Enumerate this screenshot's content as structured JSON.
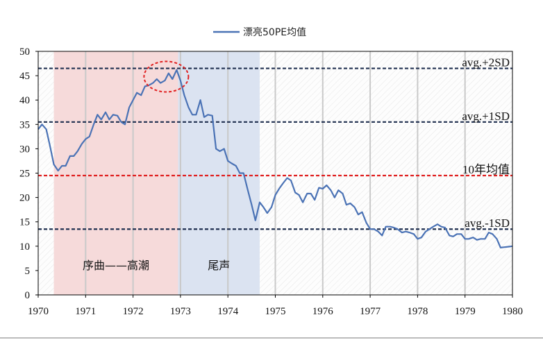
{
  "chart_data": {
    "type": "line",
    "title": "",
    "legend": {
      "position": "top-center",
      "entries": [
        "漂亮50PE均值"
      ]
    },
    "series": [
      {
        "name": "漂亮50PE均值",
        "color": "#4a72b5",
        "x": [
          1970.0,
          1970.08,
          1970.17,
          1970.25,
          1970.33,
          1970.42,
          1970.5,
          1970.58,
          1970.67,
          1970.75,
          1970.83,
          1970.92,
          1971.0,
          1971.08,
          1971.17,
          1971.25,
          1971.33,
          1971.42,
          1971.5,
          1971.58,
          1971.67,
          1971.75,
          1971.83,
          1971.92,
          1972.0,
          1972.08,
          1972.17,
          1972.25,
          1972.33,
          1972.42,
          1972.5,
          1972.58,
          1972.67,
          1972.75,
          1972.83,
          1972.92,
          1973.0,
          1973.08,
          1973.17,
          1973.25,
          1973.33,
          1973.42,
          1973.5,
          1973.58,
          1973.67,
          1973.75,
          1973.83,
          1973.92,
          1974.0,
          1974.08,
          1974.17,
          1974.25,
          1974.33,
          1974.42,
          1974.5,
          1974.58,
          1974.67,
          1974.75,
          1974.83,
          1974.92,
          1975.0,
          1975.08,
          1975.17,
          1975.25,
          1975.33,
          1975.42,
          1975.5,
          1975.58,
          1975.67,
          1975.75,
          1975.83,
          1975.92,
          1976.0,
          1976.08,
          1976.17,
          1976.25,
          1976.33,
          1976.42,
          1976.5,
          1976.58,
          1976.67,
          1976.75,
          1976.83,
          1976.92,
          1977.0,
          1977.08,
          1977.17,
          1977.25,
          1977.33,
          1977.42,
          1977.5,
          1977.58,
          1977.67,
          1977.75,
          1977.83,
          1977.92,
          1978.0,
          1978.08,
          1978.17,
          1978.25,
          1978.33,
          1978.42,
          1978.5,
          1978.58,
          1978.67,
          1978.75,
          1978.83,
          1978.92,
          1979.0,
          1979.08,
          1979.17,
          1979.25,
          1979.33,
          1979.42,
          1979.5,
          1979.58,
          1979.67,
          1979.75,
          1979.83,
          1979.92,
          1980.0
        ],
        "values": [
          34.0,
          35.0,
          34.0,
          30.5,
          26.8,
          25.5,
          26.5,
          26.5,
          28.5,
          28.5,
          29.5,
          31.0,
          32.0,
          32.5,
          35.0,
          37.0,
          36.0,
          37.5,
          36.0,
          37.0,
          36.8,
          35.5,
          35.0,
          38.5,
          40.0,
          41.5,
          41.0,
          42.8,
          43.0,
          43.5,
          44.3,
          43.5,
          44.0,
          45.5,
          44.3,
          46.2,
          44.0,
          41.0,
          38.5,
          37.0,
          37.0,
          40.0,
          36.5,
          37.0,
          36.8,
          30.0,
          29.5,
          30.0,
          27.5,
          27.0,
          26.5,
          25.0,
          25.0,
          21.5,
          18.5,
          15.3,
          19.0,
          18.0,
          16.8,
          18.0,
          20.5,
          21.8,
          23.0,
          24.0,
          23.5,
          21.0,
          20.5,
          19.0,
          20.8,
          20.8,
          19.5,
          22.0,
          21.8,
          22.5,
          21.5,
          20.0,
          21.5,
          20.8,
          18.5,
          18.8,
          18.0,
          16.5,
          17.0,
          14.8,
          13.5,
          13.5,
          13.0,
          12.2,
          14.0,
          14.0,
          13.8,
          13.5,
          12.8,
          13.0,
          12.8,
          12.5,
          11.5,
          11.8,
          13.0,
          13.5,
          14.0,
          14.5,
          14.0,
          13.8,
          12.2,
          12.0,
          12.5,
          12.5,
          11.5,
          11.5,
          11.8,
          11.3,
          11.5,
          11.5,
          12.8,
          12.5,
          11.5,
          9.7,
          9.8,
          9.9,
          10.0
        ]
      }
    ],
    "xlim": [
      1970,
      1980
    ],
    "ylim": [
      0,
      50
    ],
    "x_ticks": [
      "1970",
      "1971",
      "1972",
      "1973",
      "1974",
      "1975",
      "1976",
      "1977",
      "1978",
      "1979",
      "1980"
    ],
    "y_ticks": [
      "0",
      "5",
      "10",
      "15",
      "20",
      "25",
      "30",
      "35",
      "40",
      "45",
      "50"
    ],
    "reference_lines": [
      {
        "label": "avg.+2SD",
        "value": 46.5,
        "color": "#1f2f4f",
        "style": "dashed"
      },
      {
        "label": "avg.+1SD",
        "value": 35.5,
        "color": "#1f2f4f",
        "style": "dashed"
      },
      {
        "label": "10年均值",
        "value": 24.5,
        "color": "#e02020",
        "style": "dashed"
      },
      {
        "label": "avg.-1SD",
        "value": 13.5,
        "color": "#1f2f4f",
        "style": "dashed"
      }
    ],
    "shaded_regions": [
      {
        "label": "序曲——高潮",
        "from": 1970.33,
        "to": 1972.95,
        "color": "#f6dada"
      },
      {
        "label": "尾声",
        "from": 1972.95,
        "to": 1974.67,
        "color": "#dbe3f1"
      }
    ],
    "highlight": {
      "shape": "dashed-ellipse",
      "color": "#e02020",
      "center_x": 1972.7,
      "center_y": 44.8
    },
    "grid": {
      "vertical": true,
      "horizontal": false
    }
  }
}
